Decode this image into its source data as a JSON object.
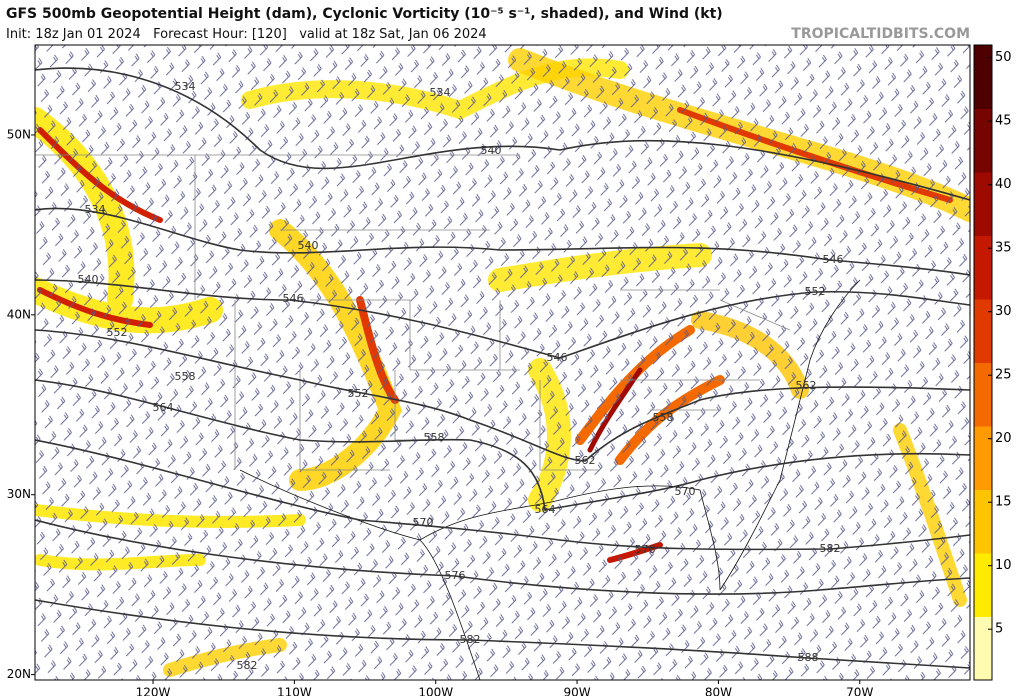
{
  "header": {
    "title": "GFS 500mb Geopotential Height (dam), Cyclonic Vorticity (10⁻⁵ s⁻¹, shaded), and Wind (kt)",
    "subtitle": "Init: 18z Jan 01 2024   Forecast Hour: [120]   valid at 18z Sat, Jan 06 2024",
    "credit": "TROPICALTIDBITS.COM"
  },
  "map": {
    "lonlim": [
      -128.35,
      -62.2
    ],
    "latlim": [
      19.7,
      55
    ],
    "lonticks": [
      {
        "value": -120,
        "label": "120W"
      },
      {
        "value": -110,
        "label": "110W"
      },
      {
        "value": -100,
        "label": "100W"
      },
      {
        "value": -90,
        "label": "90W"
      },
      {
        "value": -80,
        "label": "80W"
      },
      {
        "value": -70,
        "label": "70W"
      }
    ],
    "latticks": [
      {
        "value": 50,
        "label": "50N"
      },
      {
        "value": 40,
        "label": "40N"
      },
      {
        "value": 30,
        "label": "30N"
      },
      {
        "value": 20,
        "label": "20N"
      }
    ],
    "contour_labels": [
      534,
      534,
      540,
      534,
      540,
      540,
      546,
      546,
      552,
      552,
      546,
      558,
      552,
      564,
      562,
      558,
      558,
      562,
      570,
      564,
      570,
      576,
      582,
      576,
      582,
      582,
      588
    ]
  },
  "colorbar": {
    "lim": [
      1,
      51
    ],
    "ticks": [
      5,
      10,
      15,
      20,
      25,
      30,
      35,
      40,
      45,
      50
    ],
    "colors": [
      "#fffbb0",
      "#ffeb00",
      "#ffc400",
      "#ff9a00",
      "#f46a00",
      "#e03a00",
      "#c41800",
      "#9e0a00",
      "#760400",
      "#4e0000"
    ]
  }
}
